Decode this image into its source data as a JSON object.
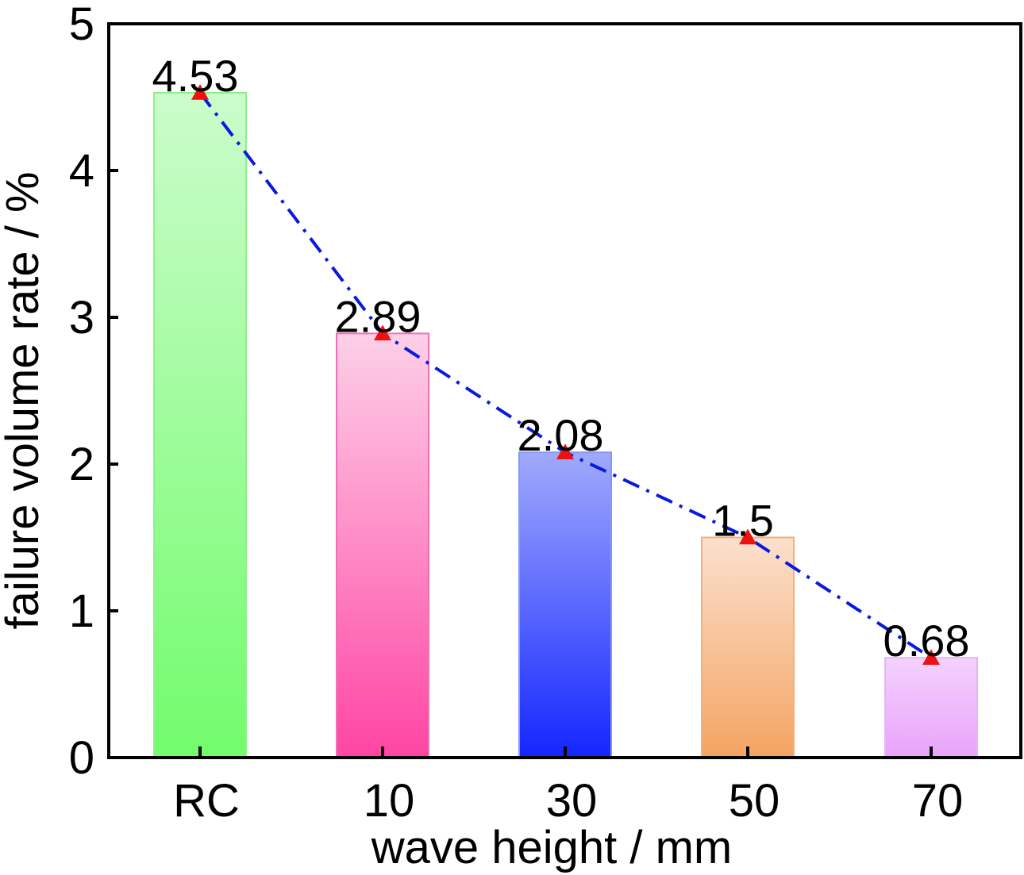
{
  "chart_data": {
    "type": "bar",
    "categories": [
      "RC",
      "10",
      "30",
      "50",
      "70"
    ],
    "values": [
      4.53,
      2.89,
      2.08,
      1.5,
      0.68
    ],
    "data_labels": [
      "4.53",
      "2.89",
      "2.08",
      "1.5",
      "0.68"
    ],
    "xlabel": "wave height / mm",
    "ylabel": "failure volume rate / %",
    "ylim": [
      0,
      5
    ],
    "yticks": [
      0,
      1,
      2,
      3,
      4,
      5
    ],
    "ytick_labels": [
      "0",
      "1",
      "2",
      "3",
      "4",
      "5"
    ],
    "grid": false,
    "bar_gradients": [
      {
        "top": "#cbfccb",
        "bottom": "#72fc6c",
        "edge": "#8ef08a"
      },
      {
        "top": "#fdd0e8",
        "bottom": "#ff45a3",
        "edge": "#f070b8"
      },
      {
        "top": "#a0aafc",
        "bottom": "#1426ff",
        "edge": "#8a96f6"
      },
      {
        "top": "#fbe0cd",
        "bottom": "#f4a462",
        "edge": "#f2b07c"
      },
      {
        "top": "#f4d2fc",
        "bottom": "#e9a3fb",
        "edge": "#e4b6f4"
      }
    ],
    "overlay_line": {
      "style": "dash-dot",
      "color": "#0a1adc",
      "marker": "triangle",
      "marker_color": "#ee1111"
    }
  }
}
